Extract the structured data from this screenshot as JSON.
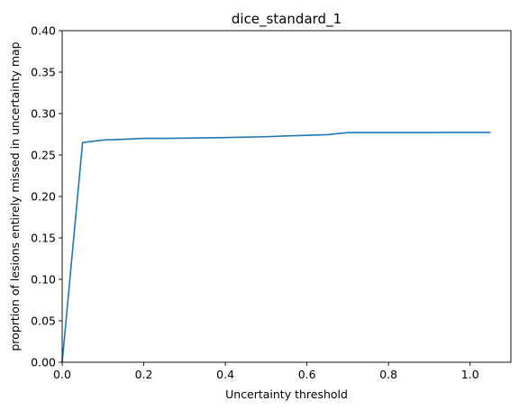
{
  "chart_data": {
    "type": "line",
    "title": "dice_standard_1",
    "xlabel": "Uncertainty threshold",
    "ylabel": "proprtion of lesions entirely missed in uncertainty map",
    "xlim": [
      0.0,
      1.1
    ],
    "ylim": [
      0.0,
      0.4
    ],
    "xticks": [
      "0.0",
      "0.2",
      "0.4",
      "0.6",
      "0.8",
      "1.0"
    ],
    "yticks": [
      "0.00",
      "0.05",
      "0.10",
      "0.15",
      "0.20",
      "0.25",
      "0.30",
      "0.35",
      "0.40"
    ],
    "grid": false,
    "series": [
      {
        "color": "#1f77b4",
        "x": [
          0.0,
          0.05,
          0.1,
          0.15,
          0.2,
          0.25,
          0.3,
          0.35,
          0.4,
          0.45,
          0.5,
          0.55,
          0.6,
          0.65,
          0.7,
          0.75,
          0.8,
          0.85,
          0.9,
          0.95,
          1.0,
          1.05
        ],
        "y": [
          0.0,
          0.265,
          0.268,
          0.269,
          0.27,
          0.27,
          0.2703,
          0.2707,
          0.271,
          0.2715,
          0.272,
          0.273,
          0.2737,
          0.2745,
          0.277,
          0.277,
          0.277,
          0.277,
          0.277,
          0.2772,
          0.2772,
          0.2772
        ]
      }
    ]
  }
}
